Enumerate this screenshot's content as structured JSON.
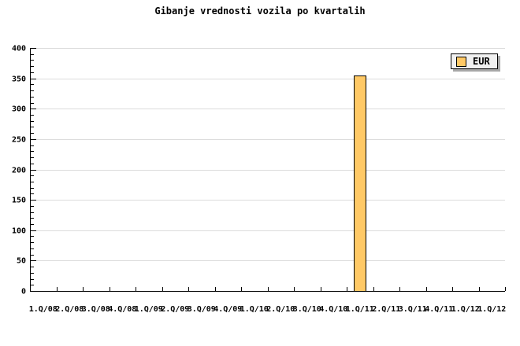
{
  "chart_data": {
    "type": "bar",
    "title": "Gibanje vrednosti vozila po kvartalih",
    "categories": [
      "1.Q/08",
      "2.Q/08",
      "3.Q/08",
      "4.Q/08",
      "1.Q/09",
      "2.Q/09",
      "3.Q/09",
      "4.Q/09",
      "1.Q/10",
      "2.Q/10",
      "3.Q/10",
      "4.Q/10",
      "1.Q/11",
      "2.Q/11",
      "3.Q/11",
      "4.Q/11",
      "1.Q/12",
      "1.Q/12"
    ],
    "series": [
      {
        "name": "EUR",
        "values": [
          null,
          null,
          null,
          null,
          null,
          null,
          null,
          null,
          null,
          null,
          null,
          null,
          355,
          null,
          null,
          null,
          null,
          null
        ],
        "color": "#FFC966"
      }
    ],
    "ylim": [
      0,
      400
    ],
    "y_major_step": 50,
    "y_minor_step": 10,
    "grid": true,
    "legend_position": "top-right"
  },
  "colors": {
    "axis": "#000000",
    "grid": "#dcdcdc",
    "bar_border": "#000000",
    "legend_background": "#f0f0f0",
    "legend_shadow": "#a8a8a8",
    "text": "#000000",
    "background": "#ffffff"
  }
}
